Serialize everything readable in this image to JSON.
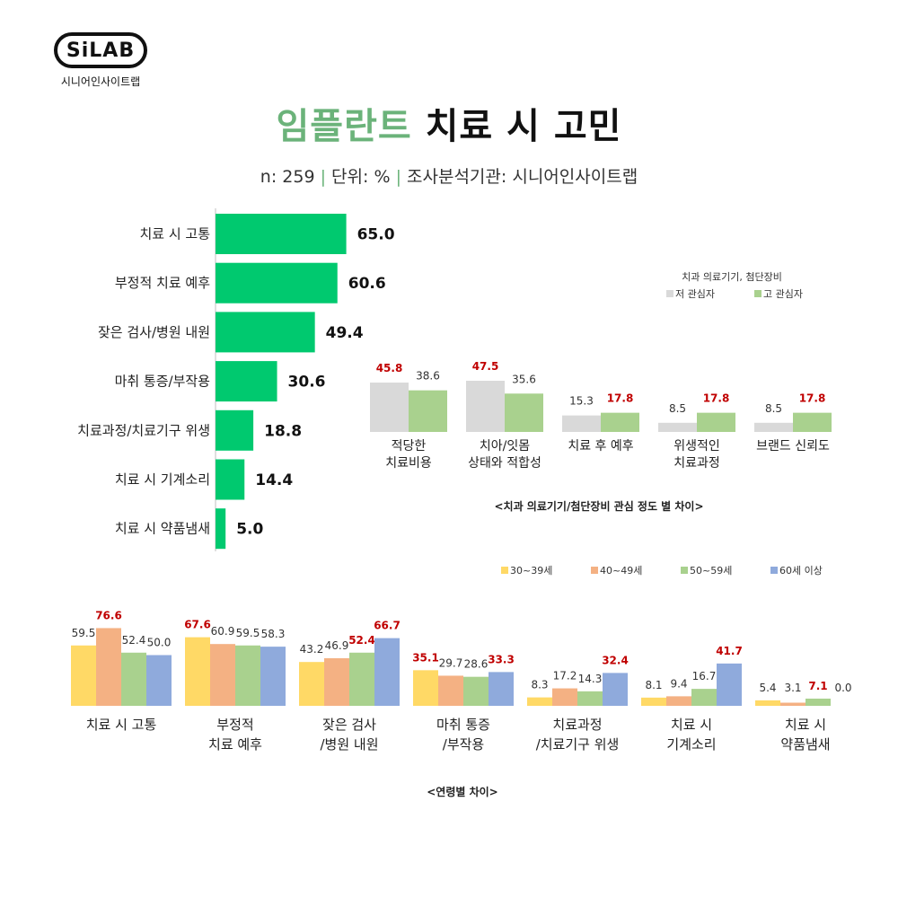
{
  "logo": {
    "badge": "SiLAB",
    "sub": "시니어인사이트랩"
  },
  "header": {
    "title_green": "임플란트",
    "title_dark": " 치료 시 고민",
    "sub_n": "n: 259",
    "sub_sep": "|",
    "sub_unit": "단위: %",
    "sub_org": "조사분석기관: 시니어인사이트랩"
  },
  "colors": {
    "main_bar": "#00c96f",
    "low_interest": "#d9d9d9",
    "high_interest": "#a9d18e",
    "age_30": "#ffd966",
    "age_40": "#f4b183",
    "age_50": "#a9d18e",
    "age_60": "#8faadc",
    "highlight": "#c00000"
  },
  "chart_data": [
    {
      "type": "bar",
      "orientation": "horizontal",
      "categories": [
        "치료 시 고통",
        "부정적 치료 예후",
        "잦은 검사/병원 내원",
        "마취 통증/부작용",
        "치료과정/치료기구 위생",
        "치료 시 기계소리",
        "치료 시 약품냄새"
      ],
      "values": [
        65.0,
        60.6,
        49.4,
        30.6,
        18.8,
        14.4,
        5.0
      ],
      "value_labels": [
        "65.0",
        "60.6",
        "49.4",
        "30.6",
        "18.8",
        "14.4",
        "5.0"
      ],
      "xlim": [
        0,
        100
      ],
      "grid": false
    },
    {
      "type": "bar",
      "title": "<치과 의료기기/첨단장비 관심 정도 별 차이>",
      "legend_title": "치과 의료기기, 첨단장비",
      "legend_position": "top-right",
      "categories": [
        [
          "적당한",
          "치료비용"
        ],
        [
          "치아/잇몸",
          "상태와 적합성"
        ],
        [
          "치료 후 예후"
        ],
        [
          "위생적인",
          "치료과정"
        ],
        [
          "브랜드 신뢰도"
        ]
      ],
      "series": [
        {
          "name": "저 관심자",
          "values": [
            45.8,
            47.5,
            15.3,
            8.5,
            8.5
          ],
          "labels": [
            "45.8",
            "47.5",
            "15.3",
            "8.5",
            "8.5"
          ],
          "highlight": [
            true,
            true,
            false,
            false,
            false
          ]
        },
        {
          "name": "고 관심자",
          "values": [
            38.6,
            35.6,
            17.8,
            17.8,
            17.8
          ],
          "labels": [
            "38.6",
            "35.6",
            "17.8",
            "17.8",
            "17.8"
          ],
          "highlight": [
            false,
            false,
            true,
            true,
            true
          ]
        }
      ],
      "ylim": [
        0,
        100
      ]
    },
    {
      "type": "bar",
      "title": "<연령별 차이>",
      "legend_position": "top-right",
      "categories": [
        [
          "치료 시 고통"
        ],
        [
          "부정적",
          "치료 예후"
        ],
        [
          "잦은 검사",
          "/병원 내원"
        ],
        [
          "마취 통증",
          "/부작용"
        ],
        [
          "치료과정",
          "/치료기구 위생"
        ],
        [
          "치료 시",
          "기계소리"
        ],
        [
          "치료 시",
          "약품냄새"
        ]
      ],
      "series": [
        {
          "name": "30~39세",
          "values": [
            59.5,
            67.6,
            43.2,
            35.1,
            8.3,
            8.1,
            5.4
          ],
          "labels": [
            "59.5",
            "67.6",
            "43.2",
            "35.1",
            "8.3",
            "8.1",
            "5.4"
          ],
          "highlight": [
            false,
            true,
            false,
            true,
            false,
            false,
            false
          ]
        },
        {
          "name": "40~49세",
          "values": [
            76.6,
            60.9,
            46.9,
            29.7,
            17.2,
            9.4,
            3.1
          ],
          "labels": [
            "76.6",
            "60.9",
            "46.9",
            "29.7",
            "17.2",
            "9.4",
            "3.1"
          ],
          "highlight": [
            true,
            false,
            false,
            false,
            false,
            false,
            false
          ]
        },
        {
          "name": "50~59세",
          "values": [
            52.4,
            59.5,
            52.4,
            28.6,
            14.3,
            16.7,
            7.1
          ],
          "labels": [
            "52.4",
            "59.5",
            "52.4",
            "28.6",
            "14.3",
            "16.7",
            "7.1"
          ],
          "highlight": [
            false,
            false,
            true,
            false,
            false,
            false,
            true
          ]
        },
        {
          "name": "60세 이상",
          "values": [
            50.0,
            58.3,
            66.7,
            33.3,
            32.4,
            41.7,
            0.0
          ],
          "labels": [
            "50.0",
            "58.3",
            "66.7",
            "33.3",
            "32.4",
            "41.7",
            "0.0"
          ],
          "highlight": [
            false,
            false,
            true,
            true,
            true,
            true,
            false
          ]
        }
      ],
      "ylim": [
        0,
        100
      ]
    }
  ]
}
